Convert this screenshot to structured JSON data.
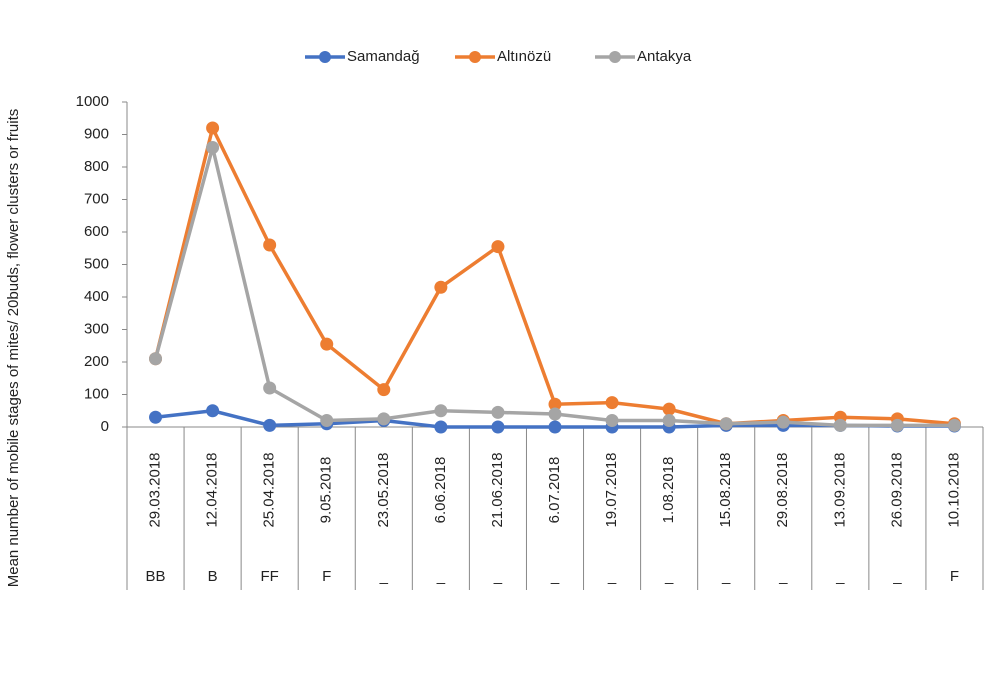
{
  "chart_data": {
    "type": "line",
    "y_label": "Mean number of mobile stages of mites/ 20buds, flower clusters or fruits",
    "categories": [
      "29.03.2018",
      "12.04.2018",
      "25.04.2018",
      "9.05.2018",
      "23.05.2018",
      "6.06.2018",
      "21.06.2018",
      "6.07.2018",
      "19.07.2018",
      "1.08.2018",
      "15.08.2018",
      "29.08.2018",
      "13.09.2018",
      "26.09.2018",
      "10.10.2018"
    ],
    "stages": [
      "BB",
      "B",
      "FF",
      "F",
      "_",
      "_",
      "_",
      "_",
      "_",
      "_",
      "_",
      "_",
      "_",
      "_",
      "F"
    ],
    "series": [
      {
        "name": "Samandağ",
        "color": "#4472c4",
        "values": [
          30,
          50,
          5,
          10,
          20,
          0,
          0,
          0,
          0,
          0,
          5,
          5,
          5,
          3,
          3
        ]
      },
      {
        "name": "Altınözü",
        "color": "#ed7d31",
        "values": [
          210,
          920,
          560,
          255,
          115,
          430,
          555,
          70,
          75,
          55,
          10,
          20,
          30,
          25,
          10
        ]
      },
      {
        "name": "Antakya",
        "color": "#a5a5a5",
        "values": [
          210,
          860,
          120,
          20,
          25,
          50,
          45,
          40,
          20,
          20,
          10,
          15,
          5,
          5,
          5
        ]
      }
    ],
    "ylim": [
      0,
      1000
    ],
    "yticks": [
      0,
      100,
      200,
      300,
      400,
      500,
      600,
      700,
      800,
      900,
      1000
    ],
    "legend": "top"
  }
}
